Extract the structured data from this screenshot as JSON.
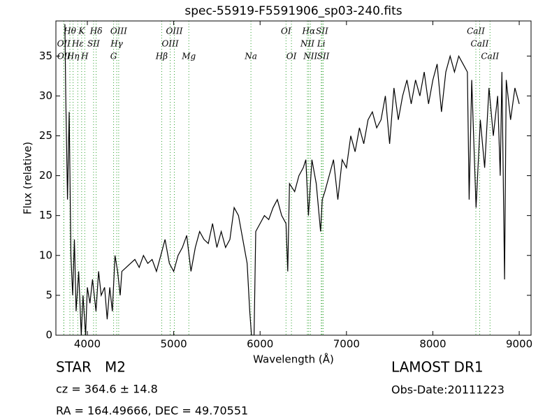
{
  "chart_data": {
    "type": "line",
    "title": "spec-55919-F5591906_sp03-240.fits",
    "x_label": "Wavelength (Å)",
    "y_label": "Flux (relative)",
    "xlim": [
      3636,
      9137
    ],
    "ylim": [
      0,
      39.4
    ],
    "xticks": [
      4000,
      5000,
      6000,
      7000,
      8000,
      9000
    ],
    "yticks": [
      0,
      5,
      10,
      15,
      20,
      25,
      30,
      35
    ],
    "color": "#000000",
    "line_color": "#2ca02c",
    "x": [
      3740,
      3750,
      3770,
      3790,
      3810,
      3830,
      3850,
      3870,
      3900,
      3930,
      3950,
      3980,
      4000,
      4030,
      4060,
      4100,
      4130,
      4160,
      4200,
      4230,
      4260,
      4290,
      4320,
      4350,
      4380,
      4400,
      4450,
      4500,
      4550,
      4600,
      4650,
      4700,
      4750,
      4800,
      4850,
      4900,
      4950,
      5000,
      5050,
      5100,
      5150,
      5200,
      5250,
      5300,
      5350,
      5400,
      5450,
      5500,
      5550,
      5600,
      5650,
      5700,
      5750,
      5800,
      5850,
      5880,
      5900,
      5930,
      5950,
      6000,
      6050,
      6100,
      6150,
      6200,
      6250,
      6300,
      6320,
      6340,
      6400,
      6450,
      6500,
      6530,
      6560,
      6600,
      6650,
      6700,
      6720,
      6750,
      6800,
      6850,
      6900,
      6950,
      7000,
      7050,
      7100,
      7150,
      7200,
      7250,
      7300,
      7350,
      7400,
      7450,
      7500,
      7550,
      7600,
      7650,
      7700,
      7750,
      7800,
      7850,
      7900,
      7950,
      8000,
      8050,
      8100,
      8150,
      8200,
      8250,
      8300,
      8350,
      8400,
      8420,
      8450,
      8500,
      8550,
      8600,
      8650,
      8700,
      8750,
      8780,
      8800,
      8830,
      8850,
      8900,
      8950,
      9000
    ],
    "values": [
      39,
      30,
      17,
      28,
      10,
      5,
      12,
      3,
      8,
      0,
      5,
      0,
      6,
      4,
      7,
      3,
      8,
      5,
      6,
      2,
      6,
      3,
      10,
      8,
      5,
      8,
      8.5,
      9,
      9.5,
      8.5,
      10,
      9,
      9.5,
      8,
      10,
      12,
      9,
      8,
      10,
      11,
      12.5,
      8,
      11,
      13,
      12,
      11.5,
      14,
      11,
      13,
      11,
      12,
      16,
      15,
      12,
      9,
      3,
      0,
      0,
      13,
      14,
      15,
      14.5,
      16,
      17,
      15,
      14,
      8,
      19,
      18,
      20,
      21,
      22,
      15,
      22,
      19,
      13,
      17,
      18,
      20,
      22,
      17,
      22,
      21,
      25,
      23,
      26,
      24,
      27,
      28,
      26,
      27,
      30,
      24,
      31,
      27,
      30,
      32,
      29,
      32,
      30,
      33,
      29,
      32,
      34,
      28,
      33,
      35,
      33,
      35,
      34,
      33,
      17,
      32,
      16,
      27,
      21,
      31,
      25,
      30,
      20,
      33,
      7,
      32,
      27,
      31,
      29
    ],
    "annotations": [
      {
        "label": "Hθ",
        "x": 3798
      },
      {
        "label": "K",
        "x": 3934
      },
      {
        "label": "Hδ",
        "x": 4102
      },
      {
        "label": "OIII",
        "x": 4363
      },
      {
        "label": "OIII",
        "x": 5007
      },
      {
        "label": "OI",
        "x": 6300
      },
      {
        "label": "Hα",
        "x": 6563
      },
      {
        "label": "SII",
        "x": 6717
      },
      {
        "label": "CaII",
        "x": 8498
      },
      {
        "label": "OII",
        "x": 3727
      },
      {
        "label": "Hε",
        "x": 3889
      },
      {
        "label": "SII",
        "x": 4072
      },
      {
        "label": "Hγ",
        "x": 4340
      },
      {
        "label": "OIII",
        "x": 4959
      },
      {
        "label": "NII",
        "x": 6548
      },
      {
        "label": "Li",
        "x": 6708
      },
      {
        "label": "CaII",
        "x": 8542
      },
      {
        "label": "OII",
        "x": 3729
      },
      {
        "label": "Hη",
        "x": 3835
      },
      {
        "label": "H",
        "x": 3970
      },
      {
        "label": "G",
        "x": 4304
      },
      {
        "label": "Hβ",
        "x": 4861
      },
      {
        "label": "Mg",
        "x": 5175
      },
      {
        "label": "Na",
        "x": 5894
      },
      {
        "label": "OI",
        "x": 6363
      },
      {
        "label": "NII",
        "x": 6583
      },
      {
        "label": "SII",
        "x": 6731
      },
      {
        "label": "CaII",
        "x": 8662
      }
    ]
  },
  "footer": {
    "object_class": "STAR   M2",
    "redshift": "cz = 364.6 ± 14.8",
    "coordinates": "RA = 164.49666, DEC = 49.70551",
    "survey": "LAMOST DR1",
    "obs_date": "Obs-Date:20111223"
  }
}
